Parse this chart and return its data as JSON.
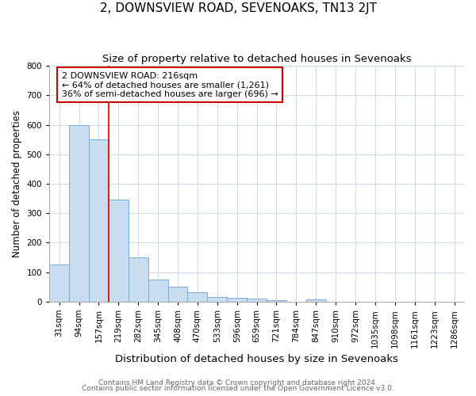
{
  "title": "2, DOWNSVIEW ROAD, SEVENOAKS, TN13 2JT",
  "subtitle": "Size of property relative to detached houses in Sevenoaks",
  "xlabel": "Distribution of detached houses by size in Sevenoaks",
  "ylabel": "Number of detached properties",
  "categories": [
    "31sqm",
    "94sqm",
    "157sqm",
    "219sqm",
    "282sqm",
    "345sqm",
    "408sqm",
    "470sqm",
    "533sqm",
    "596sqm",
    "659sqm",
    "721sqm",
    "784sqm",
    "847sqm",
    "910sqm",
    "972sqm",
    "1035sqm",
    "1098sqm",
    "1161sqm",
    "1223sqm",
    "1286sqm"
  ],
  "values": [
    127,
    600,
    550,
    345,
    150,
    75,
    52,
    33,
    15,
    12,
    10,
    5,
    0,
    7,
    0,
    0,
    0,
    0,
    0,
    0,
    0
  ],
  "bar_color": "#c9ddf0",
  "bar_edge_color": "#7badd6",
  "highlight_line_color": "#cc0000",
  "annotation_line1": "2 DOWNSVIEW ROAD: 216sqm",
  "annotation_line2": "← 64% of detached houses are smaller (1,261)",
  "annotation_line3": "36% of semi-detached houses are larger (696) →",
  "annotation_box_color": "#ffffff",
  "annotation_box_edge_color": "#cc0000",
  "ylim": [
    0,
    800
  ],
  "yticks": [
    0,
    100,
    200,
    300,
    400,
    500,
    600,
    700,
    800
  ],
  "footer_line1": "Contains HM Land Registry data © Crown copyright and database right 2024.",
  "footer_line2": "Contains public sector information licensed under the Open Government Licence v3.0.",
  "background_color": "#ffffff",
  "grid_color": "#ccd9e8",
  "title_fontsize": 11,
  "subtitle_fontsize": 9.5,
  "xlabel_fontsize": 9.5,
  "ylabel_fontsize": 8.5,
  "tick_fontsize": 7.5,
  "annotation_fontsize": 8,
  "footer_fontsize": 6.5
}
